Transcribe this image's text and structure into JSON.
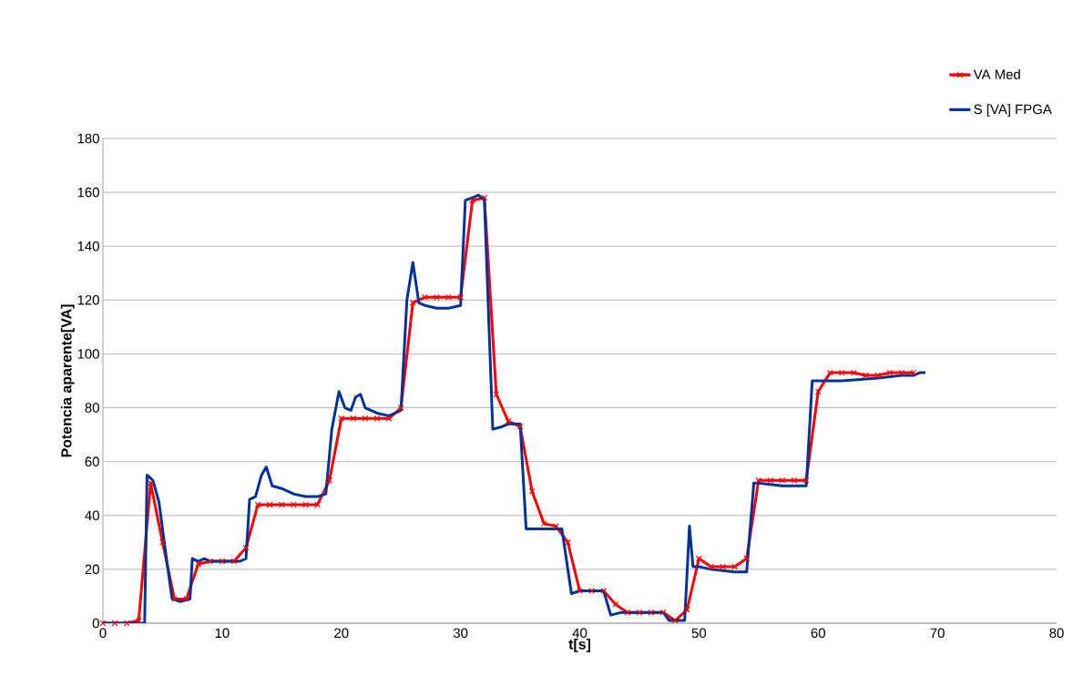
{
  "chart_data": {
    "type": "line",
    "xlabel": "t[s]",
    "ylabel": "Potencia aparente[VA]",
    "xlim": [
      0,
      80
    ],
    "xticks": [
      0,
      10,
      20,
      30,
      40,
      50,
      60,
      70,
      80
    ],
    "ylim": [
      0,
      180
    ],
    "yticks": [
      0,
      20,
      40,
      60,
      80,
      100,
      120,
      140,
      160,
      180
    ],
    "grid": "y",
    "legend": "top right",
    "series": [
      {
        "name": "VA Med",
        "color": "#ff0000",
        "marker": "cross",
        "x": [
          0,
          1,
          2,
          3,
          4,
          5,
          6,
          7,
          8,
          9,
          10,
          11,
          12,
          13,
          14,
          15,
          16,
          17,
          18,
          19,
          20,
          21,
          22,
          23,
          24,
          25,
          26,
          27,
          28,
          29,
          30,
          31,
          32,
          33,
          34,
          35,
          36,
          37,
          38,
          39,
          40,
          41,
          42,
          43,
          44,
          45,
          46,
          47,
          48,
          49,
          50,
          51,
          52,
          53,
          54,
          55,
          56,
          57,
          58,
          59,
          60,
          61,
          62,
          63,
          64,
          65,
          66,
          67,
          68
        ],
        "values": [
          0,
          0,
          0,
          1,
          52,
          30,
          9,
          9,
          22,
          23,
          23,
          23,
          28,
          44,
          44,
          44,
          44,
          44,
          44,
          53,
          76,
          76,
          76,
          76,
          76,
          80,
          119,
          121,
          121,
          121,
          121,
          157,
          158,
          85,
          75,
          73,
          49,
          37,
          36,
          30,
          12,
          12,
          12,
          7,
          4,
          4,
          4,
          4,
          1,
          5,
          24,
          21,
          21,
          21,
          24,
          53,
          53,
          53,
          53,
          53,
          86,
          93,
          93,
          93,
          92,
          92,
          93,
          93,
          93
        ]
      },
      {
        "name": "S [VA] FPGA",
        "color": "#003399",
        "marker": "none",
        "x": [
          0,
          3.5,
          3.7,
          4.2,
          4.7,
          5.3,
          5.8,
          6.5,
          7.3,
          7.5,
          8,
          8.5,
          9,
          11.5,
          12,
          12.3,
          12.8,
          13.3,
          13.7,
          14.2,
          15,
          16,
          17,
          18,
          18.7,
          19.2,
          19.8,
          20.3,
          20.8,
          21.2,
          21.6,
          22,
          23,
          24,
          25,
          25.5,
          26,
          26.5,
          27,
          28,
          29,
          30,
          30.4,
          31,
          31.5,
          32,
          32.7,
          33.5,
          34,
          35,
          35.5,
          36.5,
          38,
          38.5,
          39.3,
          40,
          42,
          42.6,
          43.5,
          47,
          47.5,
          48.8,
          49.2,
          49.5,
          50,
          51,
          53,
          54,
          54.6,
          55,
          57,
          59,
          59.5,
          60,
          62,
          65,
          67,
          68,
          68.5,
          69
        ],
        "values": [
          0,
          0,
          55,
          53,
          45,
          25,
          9,
          8,
          9,
          24,
          23,
          24,
          23,
          23,
          24,
          46,
          47,
          55,
          58,
          51,
          50,
          48,
          47,
          47,
          48,
          72,
          86,
          80,
          79,
          84,
          85,
          80,
          78,
          77,
          79,
          120,
          134,
          119,
          118,
          117,
          117,
          118,
          157,
          158,
          159,
          157,
          72,
          73,
          74,
          74,
          35,
          35,
          35,
          35,
          11,
          12,
          12,
          3,
          4,
          4,
          1,
          1,
          36,
          21,
          21,
          20,
          19,
          19,
          52,
          52,
          51,
          51,
          90,
          90,
          90,
          91,
          92,
          92,
          93,
          93
        ]
      }
    ]
  }
}
